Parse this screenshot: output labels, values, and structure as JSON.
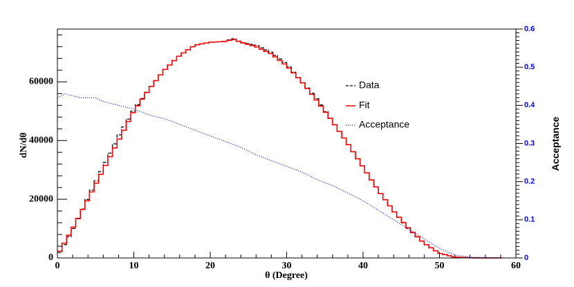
{
  "chart_data": {
    "type": "line",
    "xlabel": "θ (Degree)",
    "ylabel": "dN/dθ",
    "y2label": "Acceptance",
    "xlim": [
      0,
      60
    ],
    "ylim": [
      0,
      78000
    ],
    "y2lim": [
      0,
      0.6
    ],
    "x_ticks": [
      0,
      10,
      20,
      30,
      40,
      50,
      60
    ],
    "y_ticks": [
      0,
      20000,
      40000,
      60000
    ],
    "y2_ticks": [
      0,
      0.1,
      0.2,
      0.3,
      0.4,
      0.5,
      0.6
    ],
    "legend": [
      "Data",
      "Fit",
      "Acceptance"
    ],
    "colors": {
      "data": "#000000",
      "fit": "#ff0000",
      "acceptance": "#0000ff",
      "y2axis": "#0000ff"
    },
    "series": [
      {
        "name": "Data",
        "style": "dashed-histogram",
        "x": [
          0,
          2,
          4,
          6,
          8,
          10,
          12,
          14,
          16,
          18,
          20,
          22,
          23,
          24,
          26,
          28,
          30,
          32,
          34,
          36,
          38,
          40,
          42,
          44,
          46,
          48,
          50,
          52,
          54,
          56,
          58
        ],
        "values": [
          500,
          9500,
          20500,
          31000,
          41500,
          50500,
          57500,
          64000,
          69000,
          72500,
          73500,
          73800,
          74800,
          73500,
          72500,
          70000,
          66000,
          60000,
          54000,
          46500,
          39000,
          31000,
          23000,
          16000,
          9800,
          5000,
          1600,
          300,
          50,
          0,
          0
        ]
      },
      {
        "name": "Fit",
        "style": "histogram",
        "x": [
          0,
          2,
          4,
          6,
          8,
          10,
          12,
          14,
          16,
          18,
          20,
          22,
          23,
          24,
          26,
          28,
          30,
          32,
          34,
          36,
          38,
          40,
          42,
          44,
          46,
          48,
          50,
          52,
          54,
          56,
          58
        ],
        "values": [
          1000,
          10000,
          20000,
          30000,
          40000,
          50000,
          57500,
          64000,
          69000,
          72500,
          73500,
          73800,
          74500,
          73500,
          72000,
          69500,
          65500,
          60000,
          53500,
          46500,
          39000,
          31000,
          23000,
          16000,
          10000,
          5000,
          1600,
          300,
          50,
          0,
          0
        ]
      },
      {
        "name": "Acceptance",
        "style": "dotted",
        "axis": "right",
        "x": [
          0,
          1,
          2,
          3,
          4,
          5,
          6,
          8,
          10,
          12,
          14,
          16,
          18,
          20,
          22,
          24,
          26,
          28,
          30,
          32,
          34,
          36,
          38,
          40,
          42,
          44,
          46,
          48,
          50,
          52,
          54,
          56,
          58
        ],
        "values": [
          0.42,
          0.43,
          0.425,
          0.42,
          0.42,
          0.42,
          0.41,
          0.4,
          0.39,
          0.375,
          0.365,
          0.35,
          0.335,
          0.32,
          0.305,
          0.29,
          0.27,
          0.255,
          0.24,
          0.225,
          0.205,
          0.19,
          0.17,
          0.15,
          0.125,
          0.1,
          0.075,
          0.05,
          0.025,
          0.008,
          0.002,
          0.001,
          0
        ]
      }
    ]
  }
}
